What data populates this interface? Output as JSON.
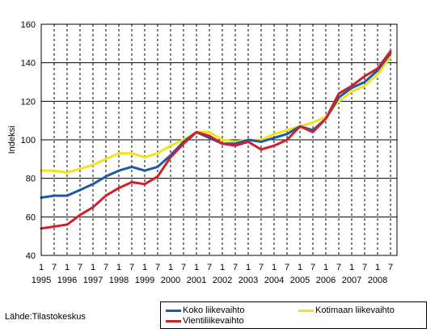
{
  "chart_data": {
    "type": "line",
    "ylabel": "Indeksi",
    "ylim": [
      40,
      160
    ],
    "yticks": [
      40,
      60,
      80,
      100,
      120,
      140,
      160
    ],
    "xlim": [
      1995.0,
      2008.75
    ],
    "xtick_top": [
      "1",
      "7",
      "1",
      "7",
      "1",
      "7",
      "1",
      "7",
      "1",
      "7",
      "1",
      "7",
      "1",
      "7",
      "1",
      "7",
      "1",
      "7",
      "1",
      "7",
      "1",
      "7",
      "1",
      "7",
      "1",
      "7",
      "1",
      "7"
    ],
    "xtick_years": [
      "1995",
      "1996",
      "1997",
      "1998",
      "1999",
      "2000",
      "2001",
      "2002",
      "2003",
      "2004",
      "2005",
      "2006",
      "2007",
      "2008"
    ],
    "grid": "horizontal solid, vertical dashed",
    "series": [
      {
        "name": "Koko liikevaihto",
        "color": "#1f5aa6",
        "x": [
          1995.0,
          1995.5,
          1996.0,
          1996.5,
          1997.0,
          1997.5,
          1998.0,
          1998.5,
          1999.0,
          1999.5,
          2000.0,
          2000.5,
          2001.0,
          2001.5,
          2002.0,
          2002.5,
          2003.0,
          2003.5,
          2004.0,
          2004.5,
          2005.0,
          2005.5,
          2006.0,
          2006.5,
          2007.0,
          2007.5,
          2008.0,
          2008.5
        ],
        "values": [
          70,
          71,
          71,
          74,
          77,
          81,
          84,
          86,
          84,
          86,
          92,
          99,
          104,
          101,
          98,
          98,
          100,
          99,
          101,
          103,
          107,
          105,
          111,
          122,
          127,
          130,
          136,
          145
        ]
      },
      {
        "name": "Vientiliikevaihto",
        "color": "#d0202e",
        "x": [
          1995.0,
          1995.5,
          1996.0,
          1996.5,
          1997.0,
          1997.5,
          1998.0,
          1998.5,
          1999.0,
          1999.5,
          2000.0,
          2000.5,
          2001.0,
          2001.5,
          2002.0,
          2002.5,
          2003.0,
          2003.5,
          2004.0,
          2004.5,
          2005.0,
          2005.5,
          2006.0,
          2006.5,
          2007.0,
          2007.5,
          2008.0,
          2008.5
        ],
        "values": [
          54,
          55,
          56,
          61,
          65,
          71,
          75,
          78,
          77,
          81,
          91,
          98,
          104,
          102,
          98,
          97,
          99,
          95,
          97,
          100,
          107,
          104,
          111,
          124,
          128,
          133,
          137,
          146
        ]
      },
      {
        "name": "Kotimaan liikevaihto",
        "color": "#f2e21a",
        "x": [
          1995.0,
          1995.5,
          1996.0,
          1996.5,
          1997.0,
          1997.5,
          1998.0,
          1998.5,
          1999.0,
          1999.5,
          2000.0,
          2000.5,
          2001.0,
          2001.5,
          2002.0,
          2002.5,
          2003.0,
          2003.5,
          2004.0,
          2004.5,
          2005.0,
          2005.5,
          2006.0,
          2006.5,
          2007.0,
          2007.5,
          2008.0,
          2008.5
        ],
        "values": [
          84,
          84,
          83,
          85,
          87,
          90,
          93,
          93,
          91,
          93,
          97,
          100,
          104,
          104,
          100,
          99,
          100,
          100,
          103,
          105,
          107,
          109,
          112,
          120,
          125,
          128,
          134,
          143
        ]
      }
    ]
  },
  "legend": {
    "items": [
      {
        "label": "Koko liikevaihto",
        "color": "#1f5aa6"
      },
      {
        "label": "Kotimaan liikevaihto",
        "color": "#f2e21a"
      },
      {
        "label": "Vientiliikevaihto",
        "color": "#d0202e"
      }
    ]
  },
  "source": "Lähde:Tilastokeskus"
}
